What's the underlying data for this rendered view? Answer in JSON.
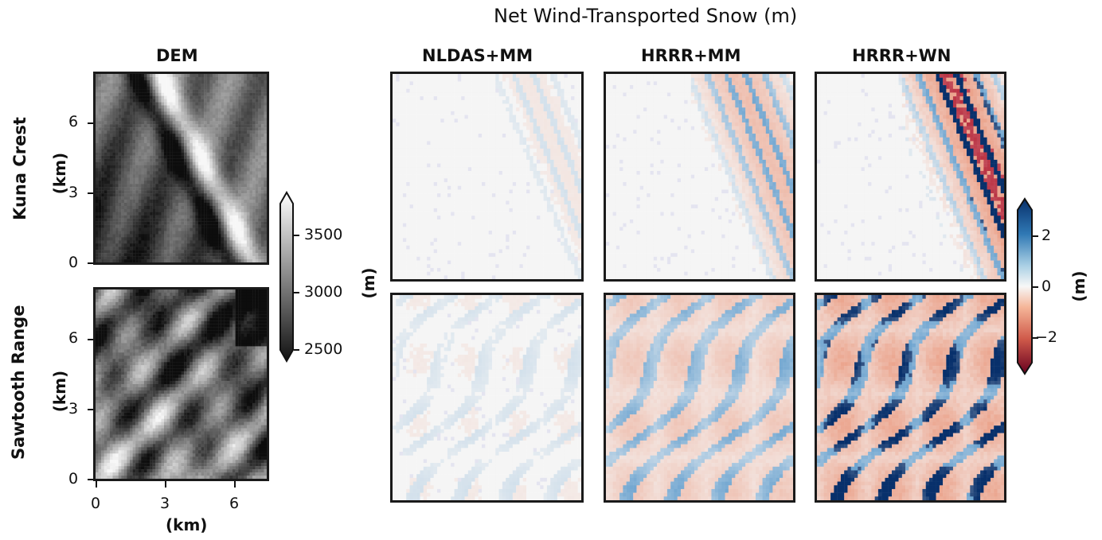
{
  "chart_data": {
    "type": "heatmap",
    "title": "Net Wind-Transported Snow (m)",
    "rows": [
      "Kuna Crest",
      "Sawtooth Range"
    ],
    "row_axis_unit": "(km)",
    "columns": [
      {
        "name": "DEM",
        "type": "elevation"
      },
      {
        "name": "NLDAS+MM",
        "type": "transport",
        "intensity": 0.15
      },
      {
        "name": "HRRR+MM",
        "type": "transport",
        "intensity": 0.55
      },
      {
        "name": "HRRR+WN",
        "type": "transport",
        "intensity": 0.9
      }
    ],
    "x_axis": {
      "label": "(km)",
      "ticks": [
        "0",
        "3",
        "6"
      ],
      "range": [
        0,
        7.5
      ]
    },
    "y_axis": {
      "label": "(km)",
      "ticks": [
        "0",
        "3",
        "6"
      ],
      "range": [
        0,
        8
      ]
    },
    "dem_colorbar": {
      "label": "(m)",
      "ticks": [
        "3500",
        "3000",
        "2500"
      ],
      "range": [
        2400,
        3900
      ],
      "colormap": "gray",
      "extend": "both"
    },
    "snow_colorbar": {
      "label": "(m)",
      "ticks": [
        "2",
        "0",
        "−2"
      ],
      "range": [
        -3,
        3
      ],
      "colormap": "RdBu",
      "extend": "both"
    },
    "colors": {
      "red_strong": "#b2182b",
      "red_mid": "#e7836a",
      "neutral": "#f5f5f5",
      "blue_mid": "#6aa9d0",
      "blue_strong": "#08306b"
    }
  }
}
